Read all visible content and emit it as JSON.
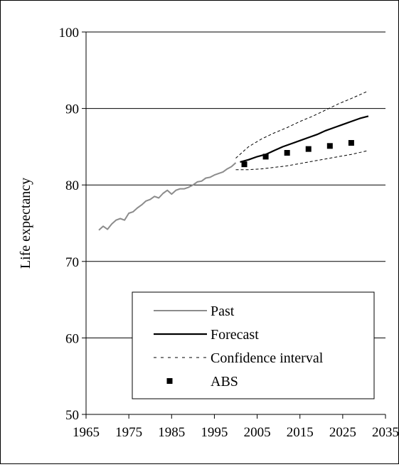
{
  "chart_data": {
    "type": "line",
    "title": "",
    "xlabel": "",
    "ylabel": "Life expectancy",
    "xlim": [
      1965,
      2035
    ],
    "ylim": [
      50,
      100
    ],
    "xticks": [
      1965,
      1975,
      1985,
      1995,
      2005,
      2015,
      2025,
      2035
    ],
    "yticks": [
      50,
      60,
      70,
      80,
      90,
      100
    ],
    "grid": "horizontal",
    "legend_position": "bottom-right",
    "series": [
      {
        "name": "Past",
        "kind": "line",
        "color": "#8c8c8c",
        "x": [
          1968,
          1969,
          1970,
          1971,
          1972,
          1973,
          1974,
          1975,
          1976,
          1977,
          1978,
          1979,
          1980,
          1981,
          1982,
          1983,
          1984,
          1985,
          1986,
          1987,
          1988,
          1989,
          1990,
          1991,
          1992,
          1993,
          1994,
          1995,
          1996,
          1997,
          1998,
          1999,
          2000
        ],
        "y": [
          74.1,
          74.6,
          74.2,
          74.9,
          75.4,
          75.6,
          75.4,
          76.3,
          76.5,
          77.0,
          77.4,
          77.9,
          78.1,
          78.5,
          78.3,
          78.9,
          79.3,
          78.8,
          79.3,
          79.5,
          79.5,
          79.7,
          80.0,
          80.4,
          80.5,
          80.9,
          81.0,
          81.3,
          81.5,
          81.7,
          82.1,
          82.4,
          82.9
        ]
      },
      {
        "name": "Forecast",
        "kind": "line",
        "color": "#000000",
        "x": [
          2001,
          2003,
          2005,
          2007,
          2009,
          2011,
          2013,
          2015,
          2017,
          2019,
          2021,
          2023,
          2025,
          2027,
          2029,
          2031
        ],
        "y": [
          83.0,
          83.3,
          83.7,
          84.0,
          84.5,
          85.0,
          85.4,
          85.8,
          86.2,
          86.6,
          87.1,
          87.5,
          87.9,
          88.3,
          88.7,
          89.0
        ]
      },
      {
        "name": "Confidence interval",
        "kind": "dashed",
        "color": "#000000",
        "upper": {
          "x": [
            2000,
            2003,
            2006,
            2009,
            2012,
            2015,
            2018,
            2021,
            2024,
            2027,
            2031
          ],
          "y": [
            83.5,
            85.0,
            86.0,
            86.8,
            87.5,
            88.3,
            89.0,
            89.8,
            90.6,
            91.3,
            92.3
          ]
        },
        "lower": {
          "x": [
            2000,
            2003,
            2006,
            2009,
            2012,
            2015,
            2018,
            2021,
            2024,
            2027,
            2031
          ],
          "y": [
            82.0,
            82.0,
            82.1,
            82.3,
            82.5,
            82.8,
            83.1,
            83.4,
            83.7,
            84.0,
            84.5
          ]
        }
      },
      {
        "name": "ABS",
        "kind": "markers",
        "color": "#000000",
        "x": [
          2002,
          2007,
          2012,
          2017,
          2022,
          2027
        ],
        "y": [
          82.7,
          83.7,
          84.2,
          84.7,
          85.1,
          85.5
        ]
      }
    ]
  }
}
